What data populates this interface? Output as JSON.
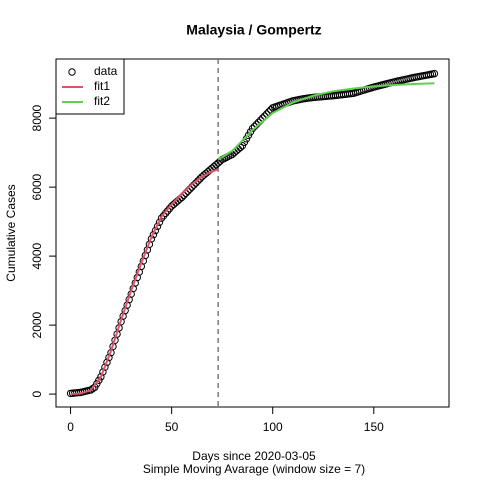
{
  "chart_data": {
    "type": "scatter",
    "title": "Malaysia / Gompertz",
    "xlabel": "Days since 2020-03-05",
    "subtitle": "Simple Moving Avarage (window size = 7)",
    "ylabel": "Cumulative Cases",
    "xlim": [
      -7.2,
      187.2
    ],
    "ylim": [
      -374,
      9714
    ],
    "xticks": [
      0,
      50,
      100,
      150
    ],
    "yticks": [
      0,
      2000,
      4000,
      6000,
      8000
    ],
    "vline": 73,
    "legend": "topleft",
    "series": [
      {
        "name": "data",
        "mode": "points",
        "color": "#000000",
        "x": [
          0,
          1,
          2,
          3,
          4,
          5,
          6,
          7,
          8,
          9,
          10,
          11,
          12,
          13,
          14,
          15,
          16,
          17,
          18,
          19,
          20,
          21,
          22,
          23,
          24,
          25,
          26,
          27,
          28,
          29,
          30,
          31,
          32,
          33,
          34,
          35,
          36,
          37,
          38,
          39,
          40,
          41,
          42,
          43,
          44,
          45,
          46,
          47,
          48,
          49,
          50,
          51,
          52,
          53,
          54,
          55,
          56,
          57,
          58,
          59,
          60,
          61,
          62,
          63,
          64,
          65,
          66,
          67,
          68,
          69,
          70,
          71,
          72,
          73,
          74,
          75,
          76,
          77,
          78,
          79,
          80,
          81,
          82,
          83,
          84,
          85,
          86,
          87,
          88,
          89,
          90,
          91,
          92,
          93,
          94,
          95,
          96,
          97,
          98,
          99,
          100,
          101,
          102,
          103,
          104,
          105,
          106,
          107,
          108,
          109,
          110,
          111,
          112,
          113,
          114,
          115,
          116,
          117,
          118,
          119,
          120,
          121,
          122,
          123,
          124,
          125,
          126,
          127,
          128,
          129,
          130,
          131,
          132,
          133,
          134,
          135,
          136,
          137,
          138,
          139,
          140,
          141,
          142,
          143,
          144,
          145,
          146,
          147,
          148,
          149,
          150,
          151,
          152,
          153,
          154,
          155,
          156,
          157,
          158,
          159,
          160,
          161,
          162,
          163,
          164,
          165,
          166,
          167,
          168,
          169,
          170,
          171,
          172,
          173,
          174,
          175,
          176,
          177,
          178,
          179,
          180
        ],
        "values": [
          20,
          26,
          32,
          38,
          44,
          50,
          64,
          78,
          92,
          106,
          120,
          160,
          200,
          300,
          400,
          500,
          640,
          780,
          920,
          1060,
          1200,
          1380,
          1560,
          1740,
          1920,
          2100,
          2260,
          2420,
          2580,
          2740,
          2900,
          3060,
          3220,
          3380,
          3540,
          3700,
          3860,
          4020,
          4180,
          4340,
          4500,
          4620,
          4740,
          4860,
          4980,
          5100,
          5170,
          5240,
          5310,
          5380,
          5450,
          5500,
          5550,
          5600,
          5650,
          5700,
          5760,
          5820,
          5880,
          5940,
          6000,
          6060,
          6120,
          6180,
          6240,
          6300,
          6350,
          6400,
          6450,
          6500,
          6550,
          6600,
          6650,
          6700,
          6750,
          6800,
          6830,
          6860,
          6890,
          6920,
          6950,
          7000,
          7050,
          7100,
          7150,
          7200,
          7300,
          7400,
          7500,
          7600,
          7700,
          7760,
          7820,
          7880,
          7940,
          8000,
          8060,
          8120,
          8180,
          8240,
          8300,
          8320,
          8340,
          8360,
          8380,
          8400,
          8420,
          8440,
          8460,
          8480,
          8500,
          8512,
          8524,
          8536,
          8548,
          8560,
          8568,
          8576,
          8584,
          8592,
          8600,
          8605,
          8610,
          8615,
          8620,
          8625,
          8630,
          8635,
          8640,
          8645,
          8650,
          8657,
          8664,
          8671,
          8678,
          8685,
          8692,
          8699,
          8706,
          8713,
          8720,
          8738,
          8756,
          8774,
          8792,
          8810,
          8828,
          8846,
          8864,
          8882,
          8900,
          8915,
          8930,
          8945,
          8960,
          8975,
          8990,
          9005,
          9020,
          9035,
          9050,
          9063,
          9076,
          9089,
          9102,
          9115,
          9128,
          9141,
          9154,
          9167,
          9180,
          9191,
          9202,
          9213,
          9224,
          9235,
          9246,
          9257,
          9268,
          9279,
          9290
        ]
      },
      {
        "name": "fit1",
        "mode": "line",
        "color": "#df536b",
        "x": [
          0,
          5,
          10,
          15,
          20,
          25,
          30,
          35,
          40,
          45,
          50,
          55,
          60,
          65,
          70,
          73
        ],
        "values": [
          0,
          20,
          110,
          500,
          1250,
          2150,
          3000,
          3800,
          4550,
          5150,
          5500,
          5800,
          6080,
          6300,
          6450,
          6520
        ]
      },
      {
        "name": "fit2",
        "mode": "line",
        "color": "#61d04f",
        "x": [
          73,
          80,
          90,
          100,
          110,
          120,
          130,
          140,
          150,
          160,
          170,
          180
        ],
        "values": [
          6800,
          7050,
          7650,
          8150,
          8450,
          8650,
          8780,
          8860,
          8920,
          8960,
          8990,
          9010
        ]
      }
    ]
  }
}
